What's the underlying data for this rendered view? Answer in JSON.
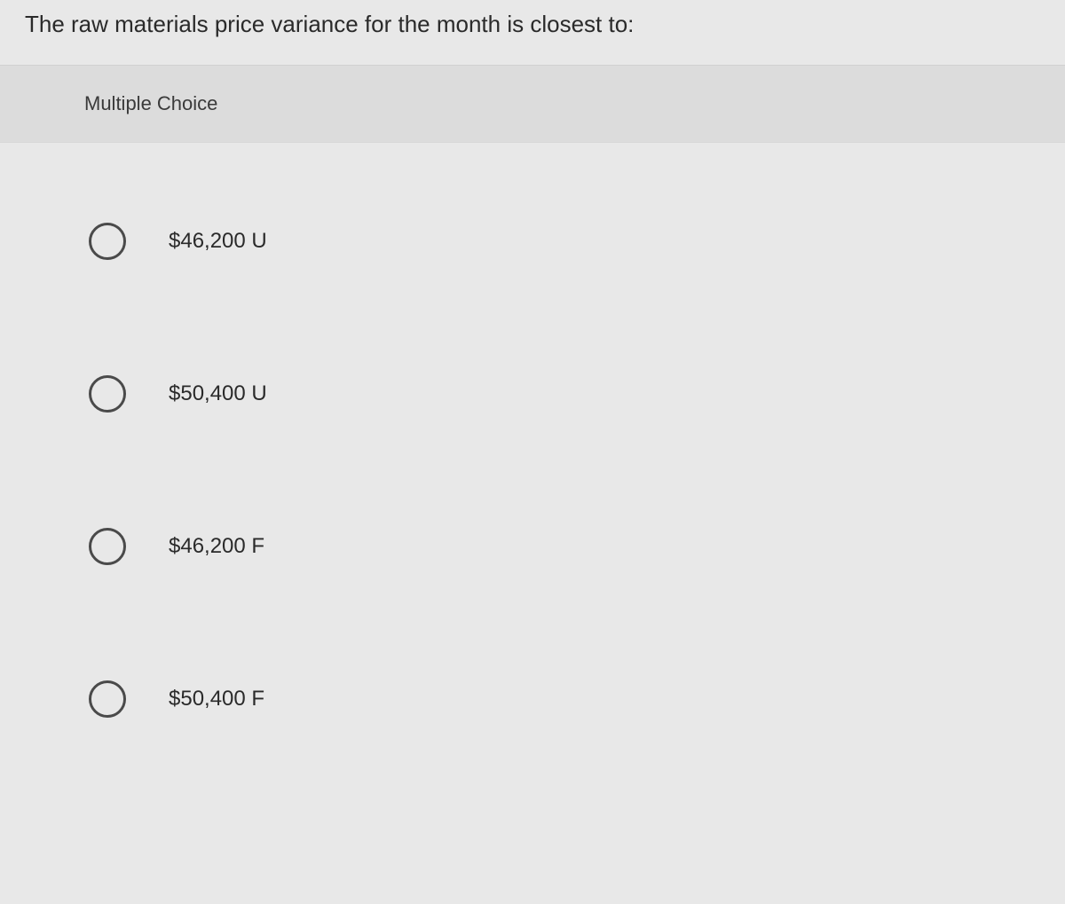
{
  "question": {
    "text": "The raw materials price variance for the month is closest to:"
  },
  "section": {
    "label": "Multiple Choice"
  },
  "options": [
    {
      "label": "$46,200 U"
    },
    {
      "label": "$50,400 U"
    },
    {
      "label": "$46,200 F"
    },
    {
      "label": "$50,400 F"
    }
  ],
  "styling": {
    "background_color": "#e8e8e8",
    "mc_header_bg": "#dcdcdc",
    "text_color": "#2a2a2a",
    "radio_border_color": "#4a4a4a",
    "question_fontsize": 26,
    "option_fontsize": 24,
    "mc_label_fontsize": 22
  }
}
